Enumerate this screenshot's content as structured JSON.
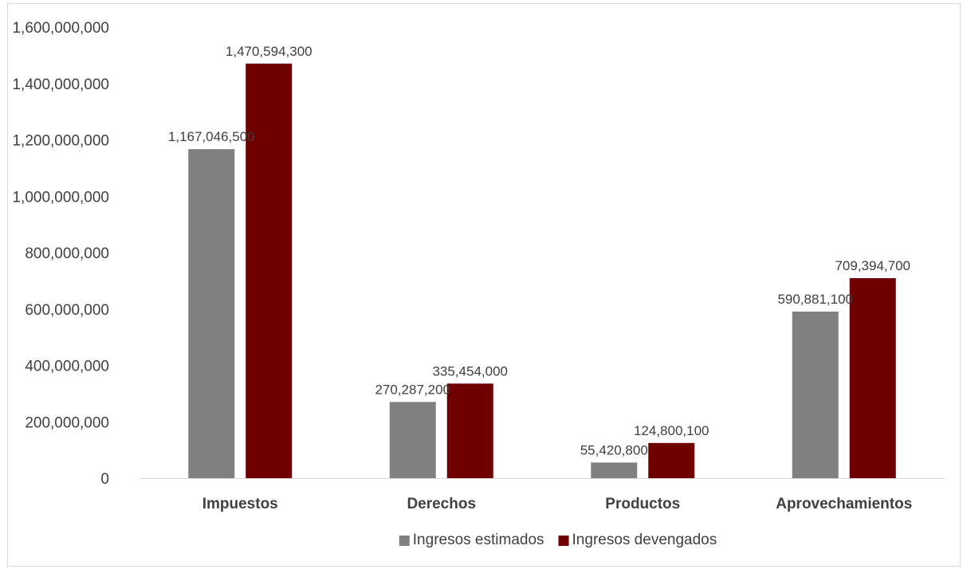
{
  "chart_data": {
    "type": "bar",
    "title": "",
    "xlabel": "",
    "ylabel": "",
    "categories": [
      "Impuestos",
      "Derechos",
      "Productos",
      "Aprovechamientos"
    ],
    "series": [
      {
        "name": "Ingresos estimados",
        "color": "#808080",
        "values": [
          1167046500,
          270287200,
          55420800,
          590881100
        ],
        "labels": [
          "1,167,046,500",
          "270,287,200",
          "55,420,800",
          "590,881,100"
        ]
      },
      {
        "name": "Ingresos devengados",
        "color": "#6e0000",
        "values": [
          1470594300,
          335454000,
          124800100,
          709394700
        ],
        "labels": [
          "1,470,594,300",
          "335,454,000",
          "124,800,100",
          "709,394,700"
        ]
      }
    ],
    "ylim": [
      0,
      1600000000
    ],
    "yticks": [
      0,
      200000000,
      400000000,
      600000000,
      800000000,
      1000000000,
      1200000000,
      1400000000,
      1600000000
    ],
    "ytick_labels": [
      "0",
      "200,000,000",
      "400,000,000",
      "600,000,000",
      "800,000,000",
      "1,000,000,000",
      "1,200,000,000",
      "1,400,000,000",
      "1,600,000,000"
    ],
    "grid": false,
    "legend": "bottom"
  }
}
